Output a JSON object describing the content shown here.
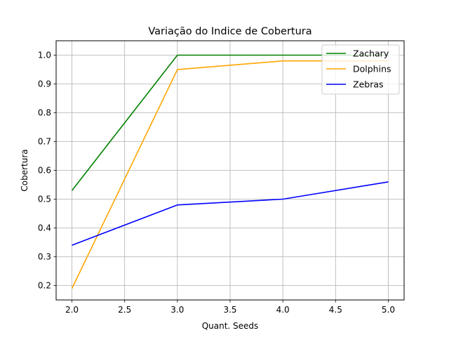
{
  "chart_data": {
    "type": "line",
    "title": "Variação do Indice de Cobertura",
    "xlabel": "Quant. Seeds",
    "ylabel": "Cobertura",
    "x": [
      2.0,
      3.0,
      4.0,
      5.0
    ],
    "xlim": [
      1.85,
      5.15
    ],
    "ylim": [
      0.15,
      1.05
    ],
    "xticks": [
      2.0,
      2.5,
      3.0,
      3.5,
      4.0,
      4.5,
      5.0
    ],
    "xtick_labels": [
      "2.0",
      "2.5",
      "3.0",
      "3.5",
      "4.0",
      "4.5",
      "5.0"
    ],
    "yticks": [
      0.2,
      0.3,
      0.4,
      0.5,
      0.6,
      0.7,
      0.8,
      0.9,
      1.0
    ],
    "ytick_labels": [
      "0.2",
      "0.3",
      "0.4",
      "0.5",
      "0.6",
      "0.7",
      "0.8",
      "0.9",
      "1.0"
    ],
    "grid": true,
    "legend_position": "top-right",
    "series": [
      {
        "name": "Zachary",
        "color": "#008000",
        "values": [
          0.53,
          1.0,
          1.0,
          1.0
        ]
      },
      {
        "name": "Dolphins",
        "color": "#FFA500",
        "values": [
          0.19,
          0.95,
          0.98,
          0.98
        ]
      },
      {
        "name": "Zebras",
        "color": "#0000FF",
        "values": [
          0.34,
          0.48,
          0.5,
          0.56
        ]
      }
    ]
  }
}
